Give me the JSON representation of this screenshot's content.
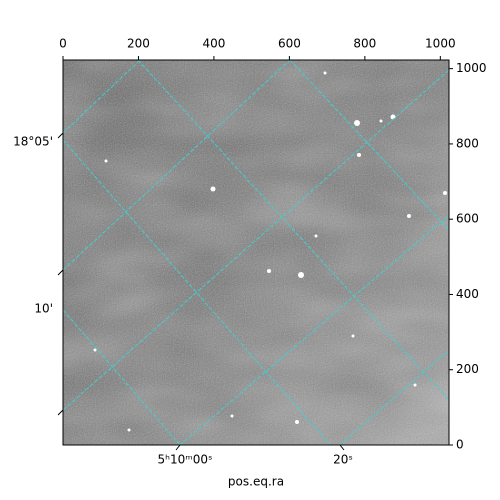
{
  "chart_data": {
    "type": "image",
    "xlabel": "pos.eq.ra",
    "xlim": [
      0,
      1023
    ],
    "ylim": [
      0,
      1023
    ],
    "xticks": [
      0,
      200,
      400,
      600,
      800,
      1000
    ],
    "yticks": [
      0,
      200,
      400,
      600,
      800,
      1000
    ],
    "dec_tick_labels": [
      "18°05'",
      "10'"
    ],
    "ra_tick_labels": [
      "5ʰ10ᵐ00ˢ",
      "20ˢ"
    ],
    "grid_color": "#40d0d0"
  }
}
